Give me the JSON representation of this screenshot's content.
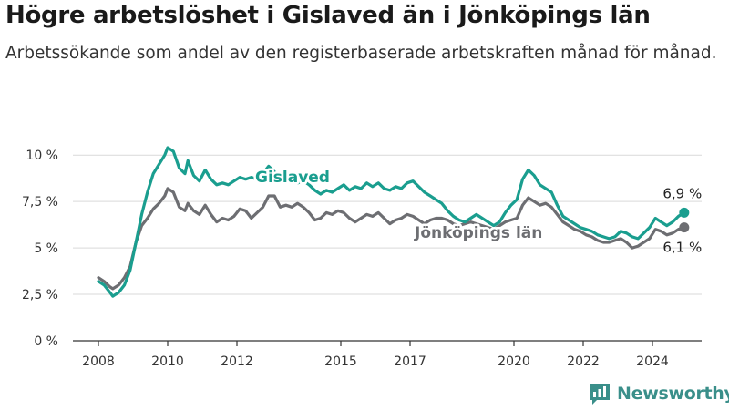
{
  "title": "Högre arbetslöshet i Gislaved än i Jönköpings län",
  "subtitle": "Arbetssökande som andel av den registerbaserade arbetskraften månad för månad.",
  "brand": "Newsworthy",
  "colors": {
    "gislaved": "#1a9e8f",
    "jonkoping": "#6d6e72",
    "grid": "#d9d9d9",
    "axis": "#333333",
    "brand": "#3a8f8a"
  },
  "chart_data": {
    "type": "line",
    "x_tick_labels": [
      "2008",
      "2010",
      "2012",
      "2015",
      "2017",
      "2020",
      "2022",
      "2024"
    ],
    "y_tick_labels": [
      "0 %",
      "2,5 %",
      "5 %",
      "7,5 %",
      "10 %"
    ],
    "ylim": [
      0,
      10.5
    ],
    "xlim": [
      "2008-01",
      "2024-12"
    ],
    "grid": true,
    "series": [
      {
        "name": "Gislaved",
        "end_label": "6,9 %",
        "points": [
          [
            "2008-01",
            3.2
          ],
          [
            "2008-03",
            3.0
          ],
          [
            "2008-05",
            2.6
          ],
          [
            "2008-06",
            2.4
          ],
          [
            "2008-08",
            2.6
          ],
          [
            "2008-10",
            3.0
          ],
          [
            "2008-12",
            3.8
          ],
          [
            "2009-02",
            5.3
          ],
          [
            "2009-04",
            6.8
          ],
          [
            "2009-06",
            8.0
          ],
          [
            "2009-08",
            9.0
          ],
          [
            "2009-10",
            9.5
          ],
          [
            "2009-12",
            10.0
          ],
          [
            "2010-01",
            10.4
          ],
          [
            "2010-03",
            10.2
          ],
          [
            "2010-05",
            9.3
          ],
          [
            "2010-07",
            9.0
          ],
          [
            "2010-08",
            9.7
          ],
          [
            "2010-10",
            8.9
          ],
          [
            "2010-12",
            8.6
          ],
          [
            "2011-02",
            9.2
          ],
          [
            "2011-04",
            8.7
          ],
          [
            "2011-06",
            8.4
          ],
          [
            "2011-08",
            8.5
          ],
          [
            "2011-10",
            8.4
          ],
          [
            "2011-12",
            8.6
          ],
          [
            "2012-02",
            8.8
          ],
          [
            "2012-04",
            8.7
          ],
          [
            "2012-06",
            8.8
          ],
          [
            "2012-08",
            8.7
          ],
          [
            "2012-10",
            9.0
          ],
          [
            "2012-12",
            9.4
          ],
          [
            "2013-02",
            9.1
          ],
          [
            "2013-04",
            8.7
          ],
          [
            "2013-06",
            8.8
          ],
          [
            "2013-08",
            8.6
          ],
          [
            "2013-10",
            8.5
          ],
          [
            "2013-12",
            8.6
          ],
          [
            "2014-02",
            8.4
          ],
          [
            "2014-04",
            8.1
          ],
          [
            "2014-06",
            7.9
          ],
          [
            "2014-08",
            8.1
          ],
          [
            "2014-10",
            8.0
          ],
          [
            "2014-12",
            8.2
          ],
          [
            "2015-02",
            8.4
          ],
          [
            "2015-04",
            8.1
          ],
          [
            "2015-06",
            8.3
          ],
          [
            "2015-08",
            8.2
          ],
          [
            "2015-10",
            8.5
          ],
          [
            "2015-12",
            8.3
          ],
          [
            "2016-02",
            8.5
          ],
          [
            "2016-04",
            8.2
          ],
          [
            "2016-06",
            8.1
          ],
          [
            "2016-08",
            8.3
          ],
          [
            "2016-10",
            8.2
          ],
          [
            "2016-12",
            8.5
          ],
          [
            "2017-02",
            8.6
          ],
          [
            "2017-04",
            8.3
          ],
          [
            "2017-06",
            8.0
          ],
          [
            "2017-08",
            7.8
          ],
          [
            "2017-10",
            7.6
          ],
          [
            "2017-12",
            7.4
          ],
          [
            "2018-02",
            7.0
          ],
          [
            "2018-04",
            6.7
          ],
          [
            "2018-06",
            6.5
          ],
          [
            "2018-08",
            6.4
          ],
          [
            "2018-10",
            6.6
          ],
          [
            "2018-12",
            6.8
          ],
          [
            "2019-02",
            6.6
          ],
          [
            "2019-04",
            6.4
          ],
          [
            "2019-06",
            6.2
          ],
          [
            "2019-08",
            6.4
          ],
          [
            "2019-10",
            6.9
          ],
          [
            "2019-12",
            7.3
          ],
          [
            "2020-02",
            7.6
          ],
          [
            "2020-04",
            8.7
          ],
          [
            "2020-06",
            9.2
          ],
          [
            "2020-08",
            8.9
          ],
          [
            "2020-10",
            8.4
          ],
          [
            "2020-12",
            8.2
          ],
          [
            "2021-02",
            8.0
          ],
          [
            "2021-04",
            7.3
          ],
          [
            "2021-06",
            6.7
          ],
          [
            "2021-08",
            6.5
          ],
          [
            "2021-10",
            6.3
          ],
          [
            "2021-12",
            6.1
          ],
          [
            "2022-02",
            6.0
          ],
          [
            "2022-04",
            5.9
          ],
          [
            "2022-06",
            5.7
          ],
          [
            "2022-08",
            5.6
          ],
          [
            "2022-10",
            5.5
          ],
          [
            "2022-12",
            5.6
          ],
          [
            "2023-02",
            5.9
          ],
          [
            "2023-04",
            5.8
          ],
          [
            "2023-06",
            5.6
          ],
          [
            "2023-08",
            5.5
          ],
          [
            "2023-10",
            5.8
          ],
          [
            "2023-12",
            6.1
          ],
          [
            "2024-02",
            6.6
          ],
          [
            "2024-04",
            6.4
          ],
          [
            "2024-06",
            6.2
          ],
          [
            "2024-08",
            6.4
          ],
          [
            "2024-10",
            6.7
          ],
          [
            "2024-12",
            6.9
          ]
        ]
      },
      {
        "name": "Jönköpings län",
        "end_label": "6,1 %",
        "points": [
          [
            "2008-01",
            3.4
          ],
          [
            "2008-03",
            3.2
          ],
          [
            "2008-05",
            2.9
          ],
          [
            "2008-06",
            2.8
          ],
          [
            "2008-08",
            3.0
          ],
          [
            "2008-10",
            3.4
          ],
          [
            "2008-12",
            4.0
          ],
          [
            "2009-02",
            5.3
          ],
          [
            "2009-04",
            6.2
          ],
          [
            "2009-06",
            6.6
          ],
          [
            "2009-08",
            7.1
          ],
          [
            "2009-10",
            7.4
          ],
          [
            "2009-12",
            7.8
          ],
          [
            "2010-01",
            8.2
          ],
          [
            "2010-03",
            8.0
          ],
          [
            "2010-05",
            7.2
          ],
          [
            "2010-07",
            7.0
          ],
          [
            "2010-08",
            7.4
          ],
          [
            "2010-10",
            7.0
          ],
          [
            "2010-12",
            6.8
          ],
          [
            "2011-02",
            7.3
          ],
          [
            "2011-04",
            6.8
          ],
          [
            "2011-06",
            6.4
          ],
          [
            "2011-08",
            6.6
          ],
          [
            "2011-10",
            6.5
          ],
          [
            "2011-12",
            6.7
          ],
          [
            "2012-02",
            7.1
          ],
          [
            "2012-04",
            7.0
          ],
          [
            "2012-06",
            6.6
          ],
          [
            "2012-08",
            6.9
          ],
          [
            "2012-10",
            7.2
          ],
          [
            "2012-12",
            7.8
          ],
          [
            "2013-02",
            7.8
          ],
          [
            "2013-04",
            7.2
          ],
          [
            "2013-06",
            7.3
          ],
          [
            "2013-08",
            7.2
          ],
          [
            "2013-10",
            7.4
          ],
          [
            "2013-12",
            7.2
          ],
          [
            "2014-02",
            6.9
          ],
          [
            "2014-04",
            6.5
          ],
          [
            "2014-06",
            6.6
          ],
          [
            "2014-08",
            6.9
          ],
          [
            "2014-10",
            6.8
          ],
          [
            "2014-12",
            7.0
          ],
          [
            "2015-02",
            6.9
          ],
          [
            "2015-04",
            6.6
          ],
          [
            "2015-06",
            6.4
          ],
          [
            "2015-08",
            6.6
          ],
          [
            "2015-10",
            6.8
          ],
          [
            "2015-12",
            6.7
          ],
          [
            "2016-02",
            6.9
          ],
          [
            "2016-04",
            6.6
          ],
          [
            "2016-06",
            6.3
          ],
          [
            "2016-08",
            6.5
          ],
          [
            "2016-10",
            6.6
          ],
          [
            "2016-12",
            6.8
          ],
          [
            "2017-02",
            6.7
          ],
          [
            "2017-04",
            6.5
          ],
          [
            "2017-06",
            6.3
          ],
          [
            "2017-08",
            6.5
          ],
          [
            "2017-10",
            6.6
          ],
          [
            "2017-12",
            6.6
          ],
          [
            "2018-02",
            6.5
          ],
          [
            "2018-04",
            6.3
          ],
          [
            "2018-06",
            6.2
          ],
          [
            "2018-08",
            6.3
          ],
          [
            "2018-10",
            6.4
          ],
          [
            "2018-12",
            6.3
          ],
          [
            "2019-02",
            6.2
          ],
          [
            "2019-04",
            6.1
          ],
          [
            "2019-06",
            6.0
          ],
          [
            "2019-08",
            6.2
          ],
          [
            "2019-10",
            6.4
          ],
          [
            "2019-12",
            6.5
          ],
          [
            "2020-02",
            6.6
          ],
          [
            "2020-04",
            7.3
          ],
          [
            "2020-06",
            7.7
          ],
          [
            "2020-08",
            7.5
          ],
          [
            "2020-10",
            7.3
          ],
          [
            "2020-12",
            7.4
          ],
          [
            "2021-02",
            7.2
          ],
          [
            "2021-04",
            6.8
          ],
          [
            "2021-06",
            6.4
          ],
          [
            "2021-08",
            6.2
          ],
          [
            "2021-10",
            6.0
          ],
          [
            "2021-12",
            5.9
          ],
          [
            "2022-02",
            5.7
          ],
          [
            "2022-04",
            5.6
          ],
          [
            "2022-06",
            5.4
          ],
          [
            "2022-08",
            5.3
          ],
          [
            "2022-10",
            5.3
          ],
          [
            "2022-12",
            5.4
          ],
          [
            "2023-02",
            5.5
          ],
          [
            "2023-04",
            5.3
          ],
          [
            "2023-06",
            5.0
          ],
          [
            "2023-08",
            5.1
          ],
          [
            "2023-10",
            5.3
          ],
          [
            "2023-12",
            5.5
          ],
          [
            "2024-02",
            6.0
          ],
          [
            "2024-04",
            5.9
          ],
          [
            "2024-06",
            5.7
          ],
          [
            "2024-08",
            5.8
          ],
          [
            "2024-10",
            6.0
          ],
          [
            "2024-12",
            6.1
          ]
        ]
      }
    ]
  }
}
